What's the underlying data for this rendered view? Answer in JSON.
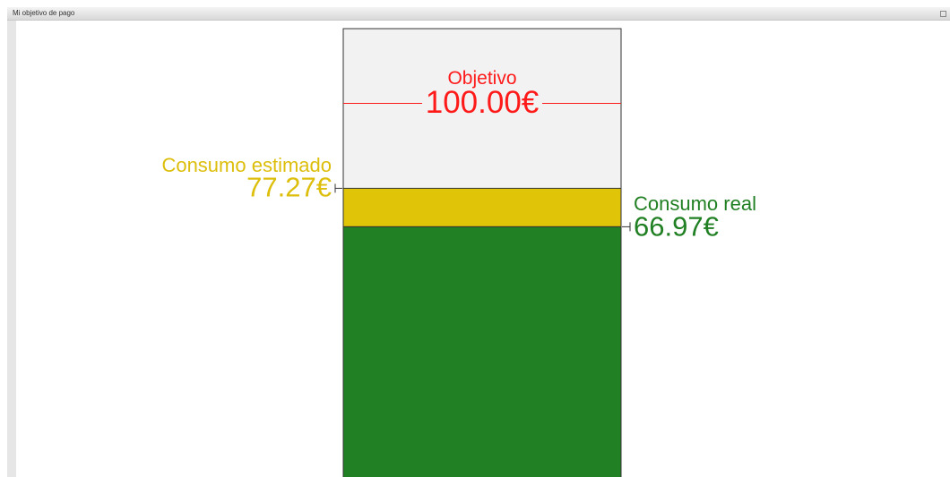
{
  "panel": {
    "title": "Mi objetivo de pago"
  },
  "chart_data": {
    "type": "gauge",
    "series": [
      {
        "name": "Objetivo",
        "color": "#ff1a1a",
        "values": [
          100
        ],
        "value_labels": [
          "100.00€"
        ]
      },
      {
        "name": "Consumo estimado",
        "color": "#e0c408",
        "values": [
          77.27
        ],
        "value_labels": [
          "77.27€"
        ]
      },
      {
        "name": "Consumo real",
        "color": "#218023",
        "values": [
          66.97
        ],
        "value_labels": [
          "66.97€"
        ]
      }
    ]
  }
}
